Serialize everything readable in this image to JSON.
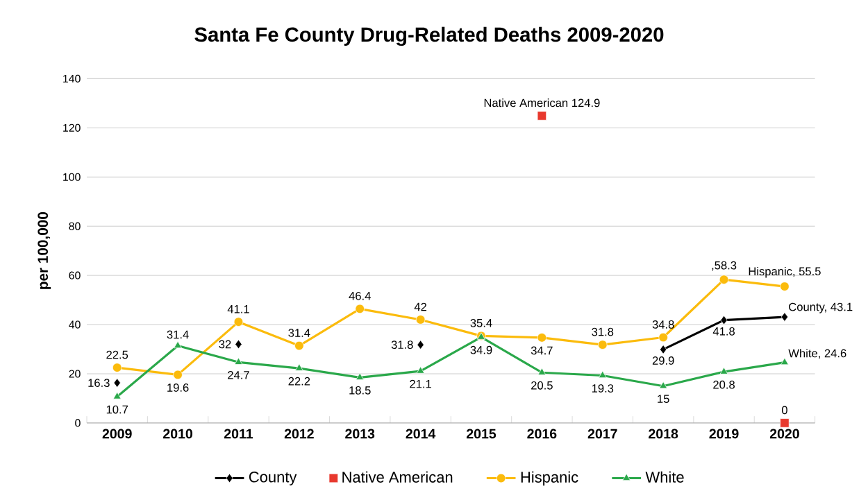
{
  "chart_data": {
    "type": "line",
    "title": "Santa Fe County Drug-Related Deaths 2009-2020",
    "ylabel": "per 100,000",
    "categories": [
      "2009",
      "2010",
      "2011",
      "2012",
      "2013",
      "2014",
      "2015",
      "2016",
      "2017",
      "2018",
      "2019",
      "2020"
    ],
    "series": [
      {
        "name": "County",
        "color": "#000000",
        "marker": "diamond",
        "values": [
          16.3,
          null,
          32,
          null,
          null,
          31.8,
          null,
          null,
          null,
          29.9,
          41.8,
          43.1
        ],
        "value_labels": [
          "16.3",
          null,
          "32",
          null,
          null,
          "31.8",
          null,
          null,
          null,
          "29.9",
          "41.8",
          "County, 43.1"
        ]
      },
      {
        "name": "Native American",
        "type": "scatter",
        "color": "#e8392e",
        "marker": "square",
        "values": [
          null,
          null,
          null,
          null,
          null,
          null,
          null,
          124.9,
          null,
          null,
          null,
          0
        ],
        "value_labels": [
          null,
          null,
          null,
          null,
          null,
          null,
          null,
          "Native American 124.9",
          null,
          null,
          null,
          "0"
        ]
      },
      {
        "name": "Hispanic",
        "color": "#fbbb0c",
        "marker": "circle",
        "values": [
          22.5,
          19.6,
          41.1,
          31.4,
          46.4,
          42,
          35.4,
          34.7,
          31.8,
          34.8,
          58.3,
          55.5
        ],
        "value_labels": [
          "22.5",
          "19.6",
          "41.1",
          "31.4",
          "46.4",
          "42",
          "35.4",
          "34.7",
          "31.8",
          "34.8",
          ",58.3",
          "Hispanic, 55.5"
        ]
      },
      {
        "name": "White",
        "color": "#2aa84a",
        "marker": "triangle",
        "values": [
          10.7,
          31.4,
          24.7,
          22.2,
          18.5,
          21.1,
          34.9,
          20.5,
          19.3,
          15,
          20.8,
          24.6
        ],
        "value_labels": [
          "10.7",
          "31.4",
          "24.7",
          "22.2",
          "18.5",
          "21.1",
          "34.9",
          "20.5",
          "19.3",
          "15",
          "20.8",
          "White, 24.6"
        ]
      }
    ],
    "ylim": [
      0,
      140
    ],
    "yticks": [
      0,
      20,
      40,
      60,
      80,
      100,
      120,
      140
    ],
    "grid": "y",
    "legend": "bottom",
    "line_style": "solid"
  }
}
